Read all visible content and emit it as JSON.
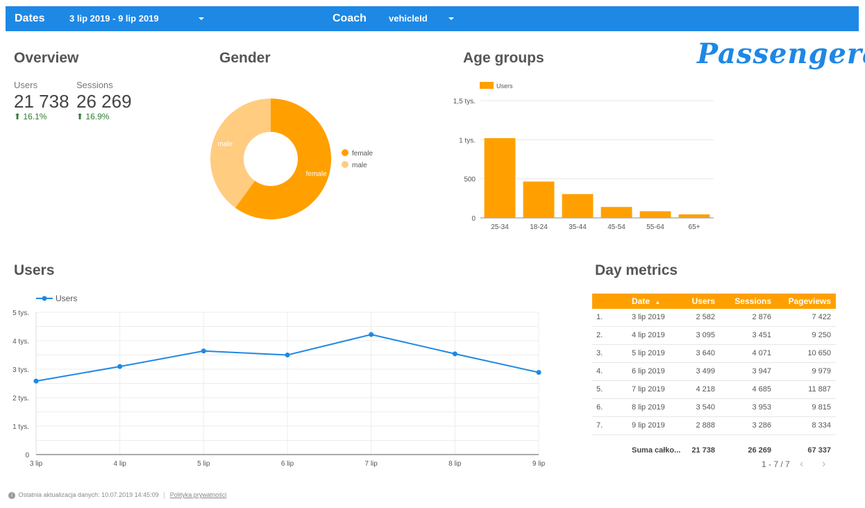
{
  "header": {
    "dates_label": "Dates",
    "dates_value": "3 lip 2019 - 9 lip 2019",
    "coach_label": "Coach",
    "coach_value": "vehicleId"
  },
  "logo": "Passengera",
  "overview": {
    "title": "Overview",
    "users_label": "Users",
    "users_value": "21 738",
    "users_delta": "16.1%",
    "sessions_label": "Sessions",
    "sessions_value": "26 269",
    "sessions_delta": "16.9%",
    "delta_icon": "arrow-up-icon"
  },
  "colors": {
    "header_bg": "#1E88E5",
    "orange": "#FFA000",
    "light_orange": "#FFCC80",
    "line_blue": "#1E88E5",
    "positive": "#2e7d32"
  },
  "gender": {
    "title": "Gender"
  },
  "age": {
    "title": "Age groups"
  },
  "users_section": {
    "title": "Users"
  },
  "day_metrics": {
    "title": "Day metrics",
    "columns": [
      "Date",
      "Users",
      "Sessions",
      "Pageviews"
    ],
    "sort_indicator": "▲",
    "rows": [
      {
        "n": "1.",
        "date": "3 lip 2019",
        "users": "2 582",
        "sessions": "2 876",
        "pageviews": "7 422"
      },
      {
        "n": "2.",
        "date": "4 lip 2019",
        "users": "3 095",
        "sessions": "3 451",
        "pageviews": "9 250"
      },
      {
        "n": "3.",
        "date": "5 lip 2019",
        "users": "3 640",
        "sessions": "4 071",
        "pageviews": "10 650"
      },
      {
        "n": "4.",
        "date": "6 lip 2019",
        "users": "3 499",
        "sessions": "3 947",
        "pageviews": "9 979"
      },
      {
        "n": "5.",
        "date": "7 lip 2019",
        "users": "4 218",
        "sessions": "4 685",
        "pageviews": "11 887"
      },
      {
        "n": "6.",
        "date": "8 lip 2019",
        "users": "3 540",
        "sessions": "3 953",
        "pageviews": "9 815"
      },
      {
        "n": "7.",
        "date": "9 lip 2019",
        "users": "2 888",
        "sessions": "3 286",
        "pageviews": "8 334"
      }
    ],
    "total_label": "Suma całko...",
    "total_users": "21 738",
    "total_sessions": "26 269",
    "total_pageviews": "67 337",
    "pagination": "1 - 7 / 7"
  },
  "footer": {
    "last_update": "Ostatnia aktualizacja danych: 10.07.2019 14:45:09",
    "privacy": "Polityka prywatności"
  },
  "chart_data": [
    {
      "type": "pie",
      "chart": "gender",
      "donut": true,
      "categories": [
        "female",
        "male"
      ],
      "values": [
        60,
        40
      ],
      "slice_labels": [
        "female",
        "male"
      ],
      "legend": "right",
      "colors": [
        "#FFA000",
        "#FFCC80"
      ]
    },
    {
      "type": "bar",
      "chart": "age",
      "categories": [
        "25-34",
        "18-24",
        "35-44",
        "45-54",
        "55-64",
        "65+"
      ],
      "series": [
        {
          "name": "Users",
          "values": [
            1020,
            465,
            305,
            140,
            85,
            45
          ]
        }
      ],
      "yticks": [
        0,
        500,
        1000,
        1500
      ],
      "ytick_labels": [
        "0",
        "500",
        "1 tys.",
        "1,5 tys."
      ],
      "ylim": [
        0,
        1500
      ],
      "legend": "top-left",
      "grid": true
    },
    {
      "type": "line",
      "chart": "users",
      "x": [
        "3 lip",
        "4 lip",
        "5 lip",
        "6 lip",
        "7 lip",
        "8 lip",
        "9 lip"
      ],
      "series": [
        {
          "name": "Users",
          "values": [
            2582,
            3095,
            3640,
            3499,
            4218,
            3540,
            2888
          ]
        }
      ],
      "yticks": [
        0,
        1000,
        2000,
        3000,
        4000,
        5000
      ],
      "ytick_labels": [
        "0",
        "1 tys.",
        "2 tys.",
        "3 tys.",
        "4 tys.",
        "5 tys."
      ],
      "ylim": [
        0,
        5000
      ],
      "legend": "top-left",
      "grid": true
    }
  ]
}
